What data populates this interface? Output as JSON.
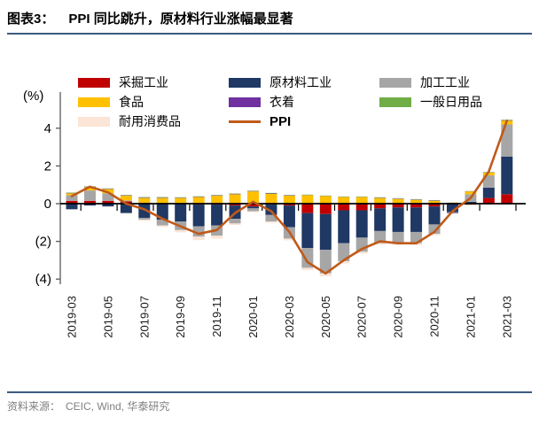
{
  "figure": {
    "label": "图表3：",
    "title": "PPI 同比跳升，原材料行业涨幅最显著",
    "unit_label": "(%)",
    "source_label": "资料来源：",
    "source": "CEIC, Wind,  华泰研究"
  },
  "colors": {
    "accent_rule": "#3C5A80",
    "axis_line": "#595959",
    "zero_line": "#000000",
    "source_text": "#808080"
  },
  "chart_data": {
    "type": "bar",
    "subtype": "stacked-bars-with-line",
    "title": "PPI 同比跳升，原材料行业涨幅最显著",
    "xlabel": "",
    "ylabel": "(%)",
    "ylim": [
      -4.5,
      5.9
    ],
    "grid": false,
    "legend_position": "top",
    "yticks": [
      {
        "v": 4,
        "label": "4"
      },
      {
        "v": 2,
        "label": "2"
      },
      {
        "v": 0,
        "label": "0"
      },
      {
        "v": -2,
        "label": "(2)"
      },
      {
        "v": -4,
        "label": "(4)"
      }
    ],
    "categories": [
      "2019-03",
      "2019-04",
      "2019-05",
      "2019-06",
      "2019-07",
      "2019-08",
      "2019-09",
      "2019-10",
      "2019-11",
      "2019-12",
      "2020-01",
      "2020-02",
      "2020-03",
      "2020-04",
      "2020-05",
      "2020-06",
      "2020-07",
      "2020-08",
      "2020-09",
      "2020-10",
      "2020-11",
      "2020-12",
      "2021-01",
      "2021-02",
      "2021-03"
    ],
    "x_tick_labels": [
      "2019-03",
      "2019-05",
      "2019-07",
      "2019-09",
      "2019-11",
      "2020-01",
      "2020-03",
      "2020-05",
      "2020-07",
      "2020-09",
      "2020-11",
      "2021-01",
      "2021-03"
    ],
    "series": [
      {
        "name": "采掘工业",
        "key": "mining-industry",
        "type": "bar",
        "color": "#C00000",
        "values": [
          0.15,
          0.15,
          0.15,
          0.12,
          0.05,
          0.02,
          0.0,
          -0.05,
          -0.05,
          -0.1,
          -0.15,
          -0.05,
          -0.1,
          -0.5,
          -0.55,
          -0.35,
          -0.35,
          -0.25,
          -0.2,
          -0.2,
          -0.15,
          0.0,
          -0.05,
          0.3,
          0.5
        ]
      },
      {
        "name": "原材料工业",
        "key": "raw-materials-industry",
        "type": "bar",
        "color": "#1F3864",
        "values": [
          -0.3,
          -0.1,
          -0.15,
          -0.5,
          -0.75,
          -0.85,
          -0.95,
          -1.15,
          -1.1,
          -0.7,
          -0.1,
          -0.55,
          -1.15,
          -1.85,
          -1.9,
          -1.75,
          -1.45,
          -1.2,
          -1.3,
          -1.3,
          -0.95,
          -0.45,
          0.1,
          0.55,
          2.0
        ]
      },
      {
        "name": "加工工业",
        "key": "processing-industry",
        "type": "bar",
        "color": "#A6A6A6",
        "values": [
          0.3,
          0.55,
          0.4,
          0.05,
          -0.1,
          -0.3,
          -0.45,
          -0.55,
          -0.55,
          -0.25,
          -0.15,
          -0.35,
          -0.6,
          -1.05,
          -1.25,
          -0.95,
          -0.75,
          -0.65,
          -0.6,
          -0.6,
          -0.5,
          -0.05,
          0.4,
          0.65,
          1.7
        ]
      },
      {
        "name": "食品",
        "key": "food",
        "type": "bar",
        "color": "#FFC000",
        "values": [
          0.1,
          0.18,
          0.22,
          0.25,
          0.25,
          0.28,
          0.3,
          0.35,
          0.42,
          0.5,
          0.65,
          0.52,
          0.42,
          0.45,
          0.4,
          0.35,
          0.35,
          0.3,
          0.25,
          0.2,
          0.15,
          0.05,
          0.15,
          0.15,
          0.2
        ]
      },
      {
        "name": "衣着",
        "key": "clothing",
        "type": "bar",
        "color": "#7030A0",
        "values": [
          0.02,
          0.02,
          0.02,
          0.02,
          0.02,
          0.02,
          0.02,
          0.02,
          0.02,
          0.02,
          0.02,
          0.02,
          0.02,
          0.01,
          0.01,
          0.01,
          0.01,
          0.02,
          0.02,
          0.02,
          0.02,
          -0.02,
          0.01,
          0.01,
          0.02
        ]
      },
      {
        "name": "一般日用品",
        "key": "general-daily-goods",
        "type": "bar",
        "color": "#70AD47",
        "values": [
          0.02,
          0.02,
          0.02,
          0.02,
          0.03,
          0.03,
          0.02,
          0.02,
          0.02,
          0.02,
          0.02,
          0.03,
          0.02,
          0.02,
          0.02,
          0.02,
          0.02,
          0.02,
          0.02,
          0.02,
          0.02,
          0.01,
          0.01,
          0.02,
          0.03
        ]
      },
      {
        "name": "耐用消费品",
        "key": "durable-consumer-goods",
        "type": "bar",
        "color": "#FBE5D6",
        "values": [
          -0.02,
          -0.02,
          -0.03,
          -0.04,
          -0.06,
          -0.08,
          -0.12,
          -0.18,
          -0.15,
          -0.08,
          -0.05,
          -0.06,
          -0.1,
          -0.12,
          -0.15,
          -0.12,
          -0.1,
          -0.08,
          -0.08,
          -0.1,
          -0.08,
          -0.03,
          -0.05,
          -0.05,
          -0.05
        ]
      },
      {
        "name": "PPI",
        "key": "ppi",
        "type": "line",
        "color": "#C05A1A",
        "values": [
          0.4,
          0.9,
          0.6,
          0.0,
          -0.3,
          -0.8,
          -1.2,
          -1.6,
          -1.4,
          -0.5,
          0.1,
          -0.4,
          -1.5,
          -3.1,
          -3.7,
          -3.0,
          -2.4,
          -2.0,
          -2.1,
          -2.1,
          -1.5,
          -0.4,
          0.3,
          1.7,
          4.4
        ]
      }
    ]
  }
}
